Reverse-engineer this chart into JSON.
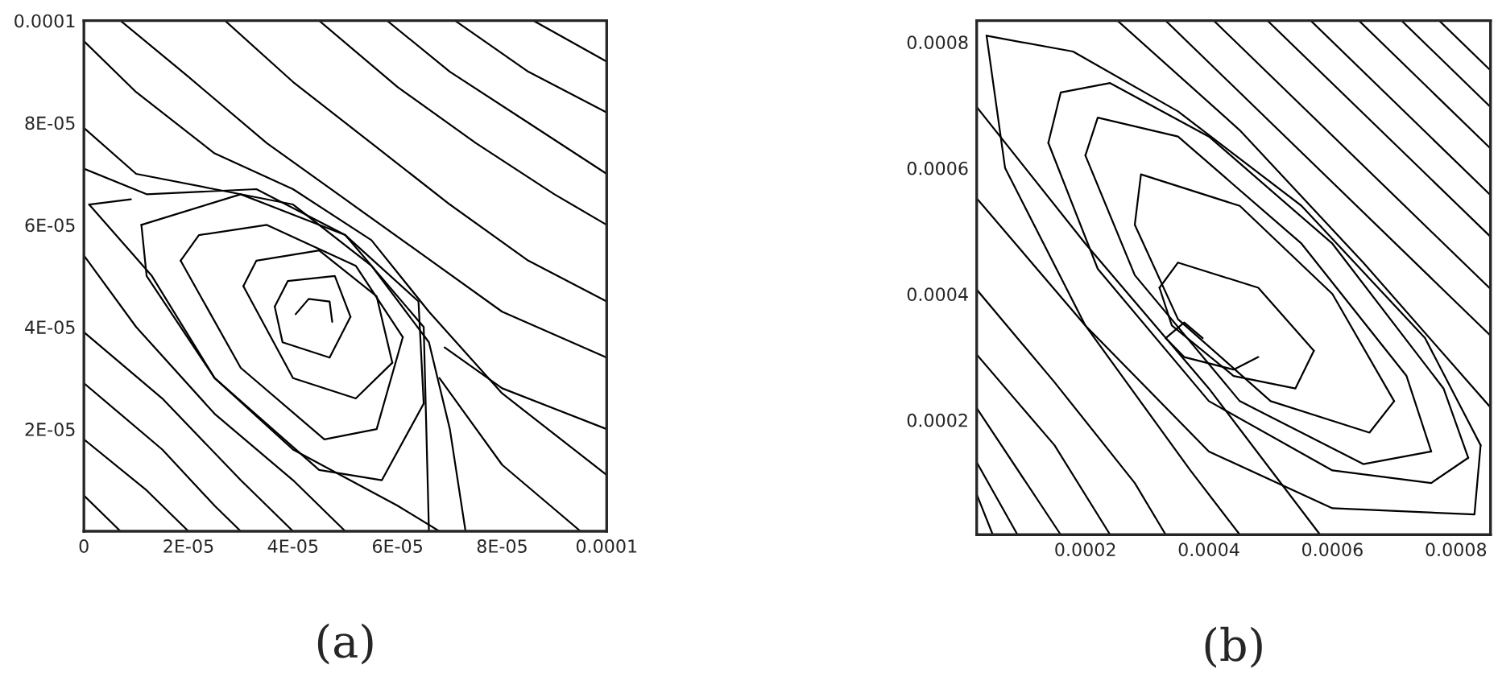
{
  "chart_data": [
    {
      "type": "line",
      "xlabel": "(a)",
      "xlim": [
        0,
        0.0001
      ],
      "ylim": [
        0,
        0.0001
      ],
      "marker": "none",
      "line_style": "solid",
      "grid": false,
      "xticks": [
        {
          "value": 0,
          "label": "0"
        },
        {
          "value": 2e-05,
          "label": "2E-05"
        },
        {
          "value": 4e-05,
          "label": "4E-05"
        },
        {
          "value": 6e-05,
          "label": "6E-05"
        },
        {
          "value": 8e-05,
          "label": "8E-05"
        },
        {
          "value": 0.0001,
          "label": "0.0001"
        }
      ],
      "yticks": [
        {
          "value": 2e-05,
          "label": "2E-05"
        },
        {
          "value": 4e-05,
          "label": "4E-05"
        },
        {
          "value": 6e-05,
          "label": "6E-05"
        },
        {
          "value": 8e-05,
          "label": "8E-05"
        },
        {
          "value": 0.0001,
          "label": "0.0001"
        }
      ],
      "series": [
        {
          "color": "#000000",
          "x": [
            7e-06,
            2e-05,
            3.5e-05,
            5e-05,
            6.5e-05,
            8e-05,
            0.0001
          ],
          "values": [
            0.0001,
            8.9e-05,
            7.6e-05,
            6.5e-05,
            5.4e-05,
            4.3e-05,
            3.4e-05
          ]
        },
        {
          "color": "#000000",
          "x": [
            2.7e-05,
            4e-05,
            5.5e-05,
            7e-05,
            8.5e-05,
            0.0001
          ],
          "values": [
            0.0001,
            8.8e-05,
            7.6e-05,
            6.4e-05,
            5.3e-05,
            4.5e-05
          ]
        },
        {
          "color": "#000000",
          "x": [
            4.5e-05,
            6e-05,
            7.5e-05,
            9e-05,
            0.0001
          ],
          "values": [
            0.0001,
            8.7e-05,
            7.6e-05,
            6.6e-05,
            6e-05
          ]
        },
        {
          "color": "#000000",
          "x": [
            5.8e-05,
            7e-05,
            8.5e-05,
            0.0001
          ],
          "values": [
            0.0001,
            9e-05,
            8e-05,
            7e-05
          ]
        },
        {
          "color": "#000000",
          "x": [
            7.1e-05,
            8.5e-05,
            0.0001
          ],
          "values": [
            0.0001,
            9e-05,
            8.2e-05
          ]
        },
        {
          "color": "#000000",
          "x": [
            8.6e-05,
            0.0001
          ],
          "values": [
            0.0001,
            9.2e-05
          ]
        },
        {
          "color": "#000000",
          "x": [
            0,
            1e-05,
            2.5e-05,
            4e-05,
            5.5e-05,
            6.6e-05,
            8e-05,
            0.0001
          ],
          "values": [
            9.6e-05,
            8.6e-05,
            7.4e-05,
            6.7e-05,
            5.7e-05,
            4.3e-05,
            2.7e-05,
            1.1e-05
          ]
        },
        {
          "color": "#000000",
          "x": [
            0,
            1e-05,
            2.5e-05,
            4e-05,
            5.5e-05,
            6.6e-05,
            7e-05,
            7.3e-05
          ],
          "values": [
            7.9e-05,
            7e-05,
            6.7e-05,
            6.4e-05,
            5.2e-05,
            3.7e-05,
            2e-05,
            0
          ]
        },
        {
          "color": "#000000",
          "x": [
            0,
            1.2e-05,
            3.3e-05,
            5e-05,
            6.5e-05,
            6.55e-05,
            6.6e-05
          ],
          "values": [
            7.1e-05,
            6.6e-05,
            6.7e-05,
            5.8e-05,
            4e-05,
            2e-05,
            0
          ]
        },
        {
          "color": "#000000",
          "x": [
            1e-06,
            1.3e-05,
            2.5e-05,
            4e-05,
            6e-05,
            6.8e-05
          ],
          "values": [
            6.4e-05,
            5e-05,
            3e-05,
            1.6e-05,
            5e-06,
            0
          ]
        },
        {
          "color": "#000000",
          "x": [
            1e-06,
            9e-06
          ],
          "values": [
            6.4e-05,
            6.5e-05
          ]
        },
        {
          "color": "#000000",
          "x": [
            1.1e-05,
            3e-05,
            5e-05,
            6.4e-05,
            6.5e-05
          ],
          "values": [
            6e-05,
            6.6e-05,
            5.8e-05,
            4.5e-05,
            2.5e-05
          ]
        },
        {
          "color": "#000000",
          "x": [
            1.1e-05,
            1.2e-05,
            2.5e-05,
            4.5e-05,
            5.7e-05,
            6.5e-05
          ],
          "values": [
            6e-05,
            5e-05,
            3e-05,
            1.2e-05,
            1e-05,
            2.5e-05
          ]
        },
        {
          "color": "#000000",
          "x": [
            1.85e-05,
            2.2e-05,
            3.5e-05,
            5.2e-05,
            6.1e-05
          ],
          "values": [
            5.3e-05,
            5.8e-05,
            6e-05,
            5.2e-05,
            3.8e-05
          ]
        },
        {
          "color": "#000000",
          "x": [
            1.85e-05,
            3e-05,
            4.6e-05,
            5.6e-05,
            6.1e-05
          ],
          "values": [
            5.3e-05,
            3.2e-05,
            1.8e-05,
            2e-05,
            3.8e-05
          ]
        },
        {
          "color": "#000000",
          "x": [
            3.05e-05,
            3.3e-05,
            4.5e-05,
            5.6e-05,
            5.9e-05
          ],
          "values": [
            4.8e-05,
            5.3e-05,
            5.5e-05,
            4.6e-05,
            3.3e-05
          ]
        },
        {
          "color": "#000000",
          "x": [
            3.05e-05,
            4e-05,
            5.2e-05,
            5.9e-05
          ],
          "values": [
            4.8e-05,
            3e-05,
            2.6e-05,
            3.3e-05
          ]
        },
        {
          "color": "#000000",
          "x": [
            3.65e-05,
            3.9e-05,
            4.8e-05,
            5.1e-05
          ],
          "values": [
            4.4e-05,
            4.9e-05,
            5e-05,
            4.2e-05
          ]
        },
        {
          "color": "#000000",
          "x": [
            3.65e-05,
            3.8e-05,
            4.7e-05,
            5.1e-05
          ],
          "values": [
            4.4e-05,
            3.7e-05,
            3.4e-05,
            4.2e-05
          ]
        },
        {
          "color": "#000000",
          "x": [
            4.05e-05,
            4.3e-05,
            4.7e-05,
            4.75e-05
          ],
          "values": [
            4.25e-05,
            4.55e-05,
            4.5e-05,
            4.1e-05
          ]
        },
        {
          "color": "#000000",
          "x": [
            0,
            1e-05,
            2.5e-05,
            4e-05,
            5e-05
          ],
          "values": [
            5.4e-05,
            4e-05,
            2.3e-05,
            1e-05,
            0
          ]
        },
        {
          "color": "#000000",
          "x": [
            0,
            1.5e-05,
            3e-05,
            4e-05
          ],
          "values": [
            3.9e-05,
            2.6e-05,
            1e-05,
            0
          ]
        },
        {
          "color": "#000000",
          "x": [
            0,
            1.5e-05,
            2.5e-05,
            3e-05
          ],
          "values": [
            2.9e-05,
            1.6e-05,
            5e-06,
            0
          ]
        },
        {
          "color": "#000000",
          "x": [
            0,
            1.2e-05,
            2e-05
          ],
          "values": [
            1.8e-05,
            8e-06,
            0
          ]
        },
        {
          "color": "#000000",
          "x": [
            0,
            7e-06
          ],
          "values": [
            7e-06,
            0
          ]
        },
        {
          "color": "#000000",
          "x": [
            6.9e-05,
            8e-05,
            0.0001
          ],
          "values": [
            3.6e-05,
            2.8e-05,
            2e-05
          ]
        },
        {
          "color": "#000000",
          "x": [
            6.8e-05,
            8e-05,
            9.5e-05
          ],
          "values": [
            3e-05,
            1.3e-05,
            0
          ]
        }
      ]
    },
    {
      "type": "line",
      "xlabel": "(b)",
      "xlim": [
        2.4e-05,
        0.000856
      ],
      "ylim": [
        1.8e-05,
        0.000834
      ],
      "marker": "none",
      "line_style": "solid",
      "grid": false,
      "xticks": [
        0.0002,
        0.0004,
        0.0006,
        0.0008
      ],
      "yticks": [
        0.0002,
        0.0004,
        0.0006,
        0.0008
      ],
      "series": [
        {
          "color": "#000000",
          "x": [
            0.00033,
            0.000856
          ],
          "values": [
            0.000834,
            0.000334
          ]
        },
        {
          "color": "#000000",
          "x": [
            0.000408,
            0.000856
          ],
          "values": [
            0.000834,
            0.000408
          ]
        },
        {
          "color": "#000000",
          "x": [
            0.000495,
            0.000856
          ],
          "values": [
            0.000834,
            0.000491
          ]
        },
        {
          "color": "#000000",
          "x": [
            0.000565,
            0.000856
          ],
          "values": [
            0.000834,
            0.000557
          ]
        },
        {
          "color": "#000000",
          "x": [
            0.000643,
            0.000856
          ],
          "values": [
            0.000834,
            0.000631
          ]
        },
        {
          "color": "#000000",
          "x": [
            0.000712,
            0.000856
          ],
          "values": [
            0.000834,
            0.000697
          ]
        },
        {
          "color": "#000000",
          "x": [
            0.000773,
            0.000856
          ],
          "values": [
            0.000834,
            0.000755
          ]
        },
        {
          "color": "#000000",
          "x": [
            0.000252,
            0.00045,
            0.00065,
            0.000856
          ],
          "values": [
            0.000834,
            0.00066,
            0.00045,
            0.00022
          ]
        },
        {
          "color": "#000000",
          "x": [
            2.4e-05,
            0.0002,
            0.0004,
            0.00058
          ],
          "values": [
            0.000697,
            0.00048,
            0.00025,
            1.8e-05
          ]
        },
        {
          "color": "#000000",
          "x": [
            2.4e-05,
            0.0002,
            0.00037,
            0.00045
          ],
          "values": [
            0.000552,
            0.00035,
            0.00012,
            1.8e-05
          ]
        },
        {
          "color": "#000000",
          "x": [
            2.4e-05,
            0.00015,
            0.00028,
            0.00033
          ],
          "values": [
            0.000407,
            0.00026,
            0.0001,
            1.8e-05
          ]
        },
        {
          "color": "#000000",
          "x": [
            2.4e-05,
            0.00015,
            0.00024
          ],
          "values": [
            0.000304,
            0.00016,
            1.8e-05
          ]
        },
        {
          "color": "#000000",
          "x": [
            2.4e-05,
            0.00016
          ],
          "values": [
            0.000219,
            1.8e-05
          ]
        },
        {
          "color": "#000000",
          "x": [
            2.4e-05,
            9e-05
          ],
          "values": [
            0.000133,
            1.8e-05
          ]
        },
        {
          "color": "#000000",
          "x": [
            2.4e-05,
            5e-05
          ],
          "values": [
            8.2e-05,
            1.8e-05
          ]
        },
        {
          "color": "#000000",
          "x": [
            4e-05,
            0.00018,
            0.00035,
            0.00055,
            0.00075,
            0.00084
          ],
          "values": [
            0.00081,
            0.000785,
            0.00069,
            0.00054,
            0.00033,
            0.00016
          ]
        },
        {
          "color": "#000000",
          "x": [
            4e-05,
            7e-05,
            0.0002,
            0.0004,
            0.0006,
            0.00083,
            0.00084
          ],
          "values": [
            0.00081,
            0.0006,
            0.00035,
            0.00015,
            6e-05,
            5e-05,
            0.00016
          ]
        },
        {
          "color": "#000000",
          "x": [
            0.00014,
            0.00016,
            0.00024,
            0.0004,
            0.0006,
            0.00078,
            0.00082
          ],
          "values": [
            0.00064,
            0.00072,
            0.000735,
            0.00065,
            0.00048,
            0.00025,
            0.00014
          ]
        },
        {
          "color": "#000000",
          "x": [
            0.00014,
            0.00022,
            0.0004,
            0.0006,
            0.00076,
            0.00082
          ],
          "values": [
            0.00064,
            0.00044,
            0.00023,
            0.00012,
            0.0001,
            0.00014
          ]
        },
        {
          "color": "#000000",
          "x": [
            0.0002,
            0.00022,
            0.00035,
            0.00055,
            0.00072,
            0.00076
          ],
          "values": [
            0.00062,
            0.00068,
            0.00065,
            0.00048,
            0.00027,
            0.00015
          ]
        },
        {
          "color": "#000000",
          "x": [
            0.0002,
            0.00028,
            0.00045,
            0.00065,
            0.00076
          ],
          "values": [
            0.00062,
            0.00043,
            0.00023,
            0.00013,
            0.00015
          ]
        },
        {
          "color": "#000000",
          "x": [
            0.00028,
            0.00029,
            0.00045,
            0.0006,
            0.0007
          ],
          "values": [
            0.00051,
            0.00059,
            0.00054,
            0.0004,
            0.00023
          ]
        },
        {
          "color": "#000000",
          "x": [
            0.00028,
            0.00035,
            0.0005,
            0.00066,
            0.0007
          ],
          "values": [
            0.00051,
            0.00036,
            0.00023,
            0.00018,
            0.00023
          ]
        },
        {
          "color": "#000000",
          "x": [
            0.00032,
            0.00035,
            0.00048,
            0.00057
          ],
          "values": [
            0.00041,
            0.00045,
            0.00041,
            0.00031
          ]
        },
        {
          "color": "#000000",
          "x": [
            0.00032,
            0.00034,
            0.00044,
            0.00054,
            0.00057
          ],
          "values": [
            0.00041,
            0.00035,
            0.00027,
            0.00025,
            0.00031
          ]
        },
        {
          "color": "#000000",
          "x": [
            0.00033,
            0.00036,
            0.00039
          ],
          "values": [
            0.00033,
            0.000355,
            0.00033
          ]
        },
        {
          "color": "#000000",
          "x": [
            0.00033,
            0.00036,
            0.00044,
            0.00048
          ],
          "values": [
            0.00033,
            0.0003,
            0.00028,
            0.0003
          ]
        }
      ]
    }
  ]
}
